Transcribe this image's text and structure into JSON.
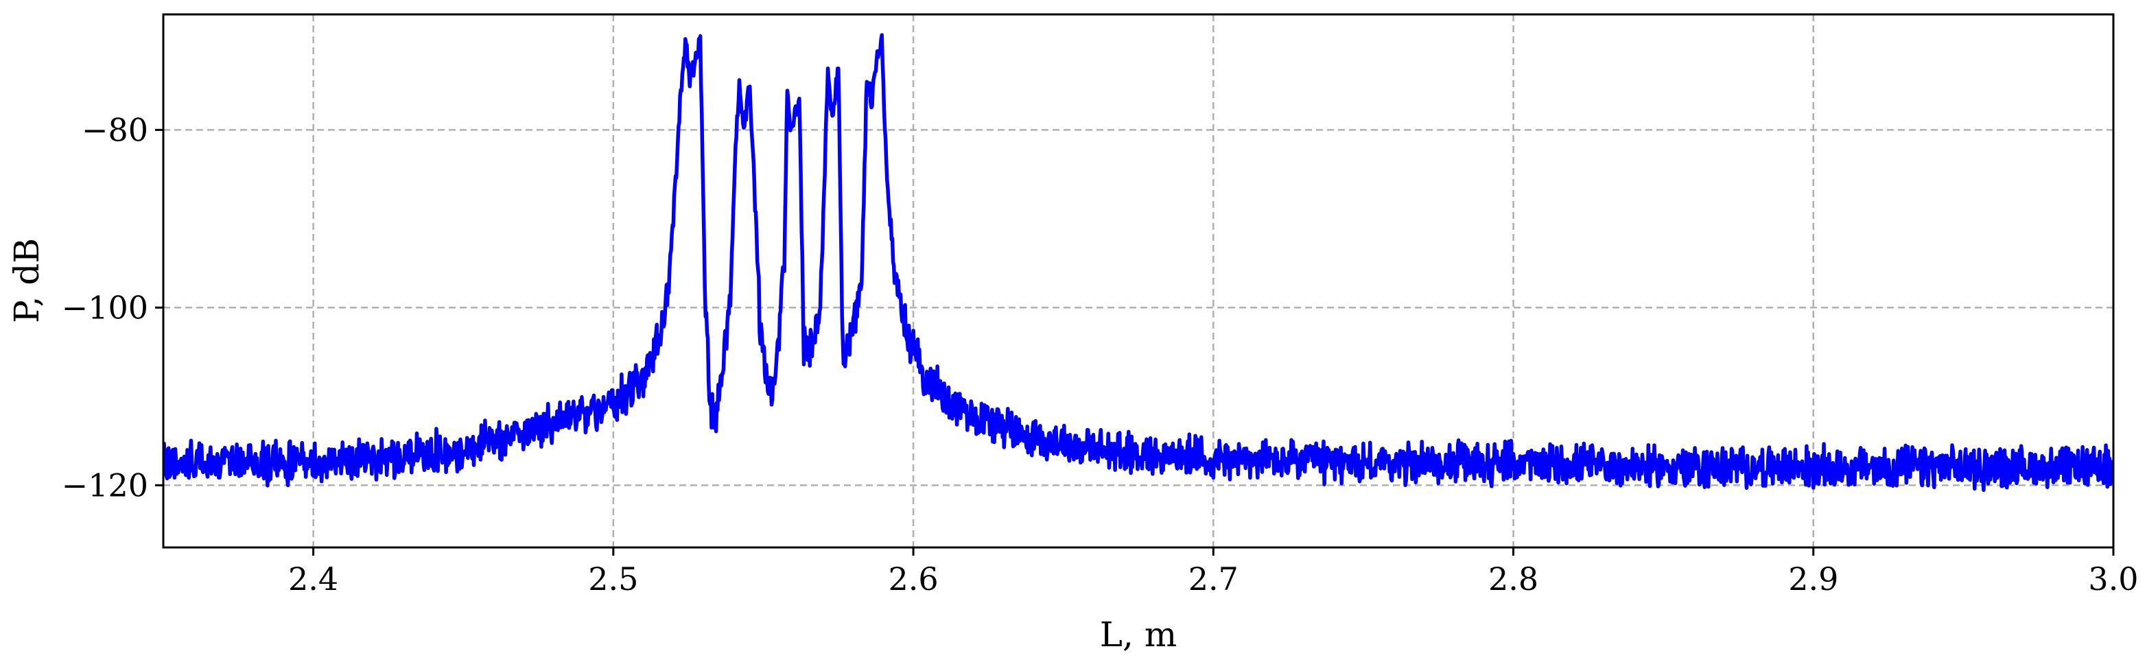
{
  "chart_data": {
    "type": "line",
    "title": "",
    "xlabel": "L, m",
    "ylabel": "P, dB",
    "xlim": [
      2.35,
      3.0
    ],
    "ylim": [
      -127,
      -67
    ],
    "grid": true,
    "legend": "none",
    "x_ticks": [
      2.4,
      2.5,
      2.6,
      2.7,
      2.8,
      2.9,
      3.0
    ],
    "x_tick_labels": [
      "2.4",
      "2.5",
      "2.6",
      "2.7",
      "2.8",
      "2.9",
      "3.0"
    ],
    "y_ticks": [
      -80,
      -100,
      -120
    ],
    "y_tick_labels": [
      "−80",
      "−100",
      "−120"
    ],
    "series": [
      {
        "color": "#0000ff",
        "x": [
          2.35,
          2.4,
          2.45,
          2.48,
          2.5,
          2.51,
          2.515,
          2.518,
          2.52,
          2.522,
          2.524,
          2.5255,
          2.527,
          2.529,
          2.5305,
          2.532,
          2.534,
          2.536,
          2.539,
          2.541,
          2.542,
          2.5435,
          2.5455,
          2.5475,
          2.549,
          2.551,
          2.553,
          2.555,
          2.557,
          2.558,
          2.559,
          2.5605,
          2.562,
          2.5635,
          2.565,
          2.567,
          2.569,
          2.5705,
          2.5715,
          2.573,
          2.575,
          2.5765,
          2.578,
          2.581,
          2.583,
          2.5845,
          2.586,
          2.588,
          2.5895,
          2.591,
          2.594,
          2.598,
          2.603,
          2.61,
          2.62,
          2.64,
          2.66,
          2.7,
          2.75,
          2.8,
          2.85,
          2.9,
          2.95,
          3.0
        ],
        "y": [
          -117.5,
          -117.5,
          -116,
          -113,
          -111,
          -108,
          -104,
          -99,
          -90,
          -78,
          -70,
          -74,
          -73,
          -70,
          -98,
          -110,
          -113,
          -109,
          -99,
          -80,
          -75.5,
          -79.5,
          -75,
          -90,
          -103,
          -108,
          -110,
          -104,
          -95,
          -75.5,
          -80,
          -78.5,
          -76,
          -104,
          -105,
          -104,
          -100,
          -84,
          -73,
          -79,
          -73,
          -105,
          -104,
          -101,
          -95,
          -74,
          -77,
          -72,
          -70,
          -84,
          -97,
          -103,
          -107,
          -110,
          -112,
          -114.5,
          -116,
          -117,
          -117.5,
          -117.5,
          -118,
          -118,
          -118,
          -118
        ]
      }
    ]
  }
}
